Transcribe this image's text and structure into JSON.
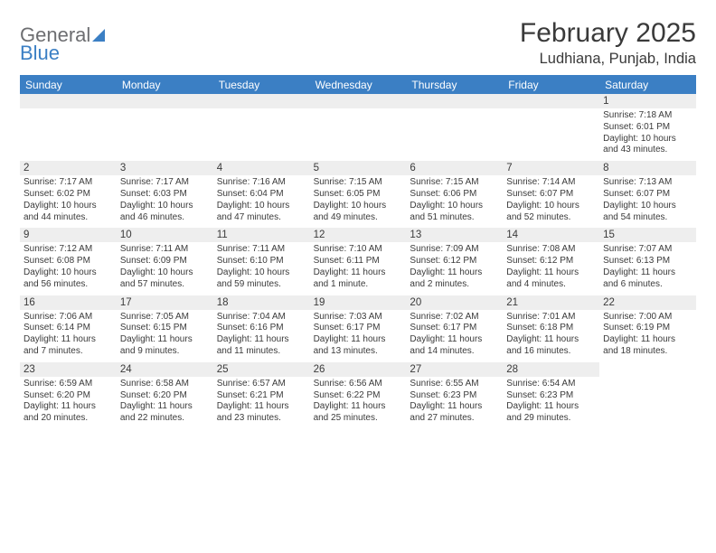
{
  "logo": {
    "text1": "General",
    "text2": "Blue"
  },
  "title": "February 2025",
  "location": "Ludhiana, Punjab, India",
  "colors": {
    "accent": "#3b7fc4",
    "header_text": "#ffffff",
    "daynum_bg": "#eeeeee",
    "text": "#3a3a3a",
    "logo_gray": "#6d6e71"
  },
  "weekdays": [
    "Sunday",
    "Monday",
    "Tuesday",
    "Wednesday",
    "Thursday",
    "Friday",
    "Saturday"
  ],
  "grid": {
    "leading_blanks": 6,
    "days": [
      {
        "n": 1,
        "sunrise": "7:18 AM",
        "sunset": "6:01 PM",
        "daylight": "10 hours and 43 minutes."
      },
      {
        "n": 2,
        "sunrise": "7:17 AM",
        "sunset": "6:02 PM",
        "daylight": "10 hours and 44 minutes."
      },
      {
        "n": 3,
        "sunrise": "7:17 AM",
        "sunset": "6:03 PM",
        "daylight": "10 hours and 46 minutes."
      },
      {
        "n": 4,
        "sunrise": "7:16 AM",
        "sunset": "6:04 PM",
        "daylight": "10 hours and 47 minutes."
      },
      {
        "n": 5,
        "sunrise": "7:15 AM",
        "sunset": "6:05 PM",
        "daylight": "10 hours and 49 minutes."
      },
      {
        "n": 6,
        "sunrise": "7:15 AM",
        "sunset": "6:06 PM",
        "daylight": "10 hours and 51 minutes."
      },
      {
        "n": 7,
        "sunrise": "7:14 AM",
        "sunset": "6:07 PM",
        "daylight": "10 hours and 52 minutes."
      },
      {
        "n": 8,
        "sunrise": "7:13 AM",
        "sunset": "6:07 PM",
        "daylight": "10 hours and 54 minutes."
      },
      {
        "n": 9,
        "sunrise": "7:12 AM",
        "sunset": "6:08 PM",
        "daylight": "10 hours and 56 minutes."
      },
      {
        "n": 10,
        "sunrise": "7:11 AM",
        "sunset": "6:09 PM",
        "daylight": "10 hours and 57 minutes."
      },
      {
        "n": 11,
        "sunrise": "7:11 AM",
        "sunset": "6:10 PM",
        "daylight": "10 hours and 59 minutes."
      },
      {
        "n": 12,
        "sunrise": "7:10 AM",
        "sunset": "6:11 PM",
        "daylight": "11 hours and 1 minute."
      },
      {
        "n": 13,
        "sunrise": "7:09 AM",
        "sunset": "6:12 PM",
        "daylight": "11 hours and 2 minutes."
      },
      {
        "n": 14,
        "sunrise": "7:08 AM",
        "sunset": "6:12 PM",
        "daylight": "11 hours and 4 minutes."
      },
      {
        "n": 15,
        "sunrise": "7:07 AM",
        "sunset": "6:13 PM",
        "daylight": "11 hours and 6 minutes."
      },
      {
        "n": 16,
        "sunrise": "7:06 AM",
        "sunset": "6:14 PM",
        "daylight": "11 hours and 7 minutes."
      },
      {
        "n": 17,
        "sunrise": "7:05 AM",
        "sunset": "6:15 PM",
        "daylight": "11 hours and 9 minutes."
      },
      {
        "n": 18,
        "sunrise": "7:04 AM",
        "sunset": "6:16 PM",
        "daylight": "11 hours and 11 minutes."
      },
      {
        "n": 19,
        "sunrise": "7:03 AM",
        "sunset": "6:17 PM",
        "daylight": "11 hours and 13 minutes."
      },
      {
        "n": 20,
        "sunrise": "7:02 AM",
        "sunset": "6:17 PM",
        "daylight": "11 hours and 14 minutes."
      },
      {
        "n": 21,
        "sunrise": "7:01 AM",
        "sunset": "6:18 PM",
        "daylight": "11 hours and 16 minutes."
      },
      {
        "n": 22,
        "sunrise": "7:00 AM",
        "sunset": "6:19 PM",
        "daylight": "11 hours and 18 minutes."
      },
      {
        "n": 23,
        "sunrise": "6:59 AM",
        "sunset": "6:20 PM",
        "daylight": "11 hours and 20 minutes."
      },
      {
        "n": 24,
        "sunrise": "6:58 AM",
        "sunset": "6:20 PM",
        "daylight": "11 hours and 22 minutes."
      },
      {
        "n": 25,
        "sunrise": "6:57 AM",
        "sunset": "6:21 PM",
        "daylight": "11 hours and 23 minutes."
      },
      {
        "n": 26,
        "sunrise": "6:56 AM",
        "sunset": "6:22 PM",
        "daylight": "11 hours and 25 minutes."
      },
      {
        "n": 27,
        "sunrise": "6:55 AM",
        "sunset": "6:23 PM",
        "daylight": "11 hours and 27 minutes."
      },
      {
        "n": 28,
        "sunrise": "6:54 AM",
        "sunset": "6:23 PM",
        "daylight": "11 hours and 29 minutes."
      }
    ]
  },
  "labels": {
    "sunrise": "Sunrise:",
    "sunset": "Sunset:",
    "daylight": "Daylight:"
  }
}
